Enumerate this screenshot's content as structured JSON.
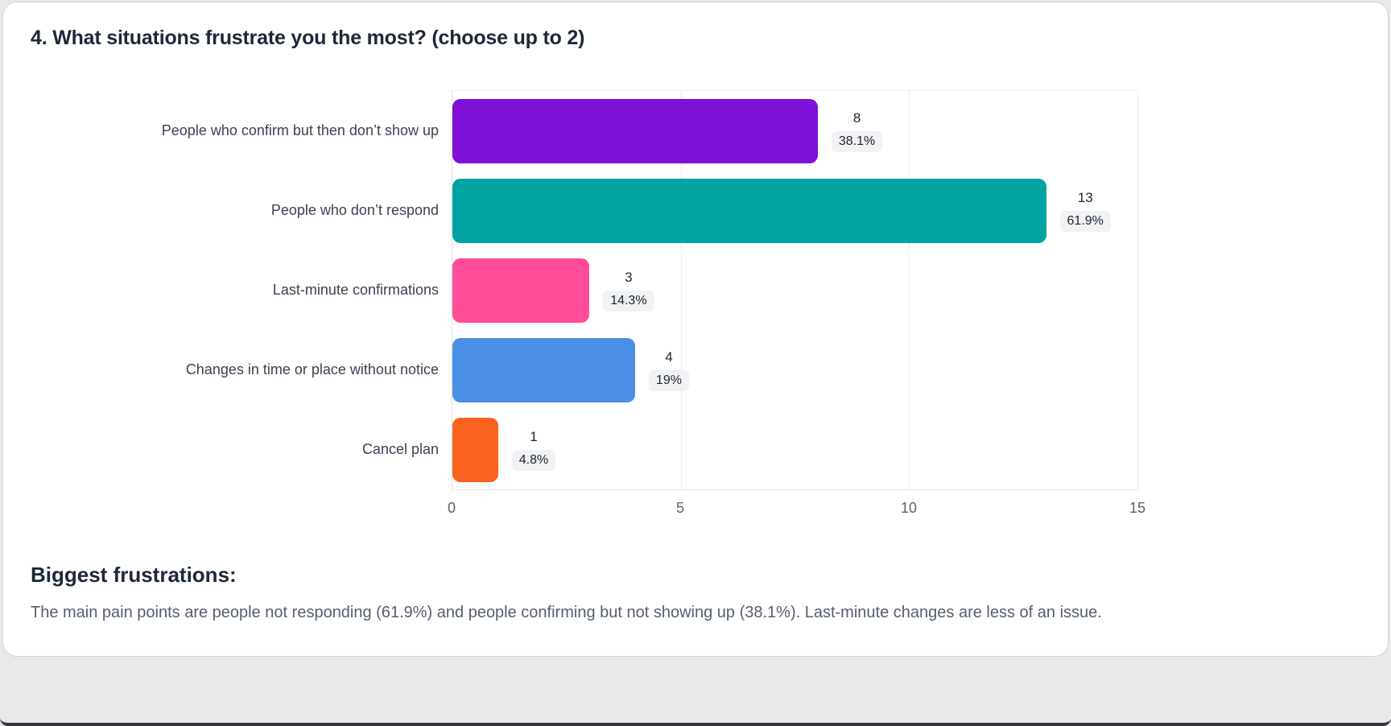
{
  "page": {
    "background_color": "#e9e9ec",
    "card_color": "#ffffff"
  },
  "chart_data": {
    "type": "bar",
    "orientation": "horizontal",
    "title": "4. What situations frustrate you the most? (choose up to 2)",
    "categories": [
      "People who confirm but then don’t show up",
      "People who don’t respond",
      "Last-minute confirmations",
      "Changes in time or place without notice",
      "Cancel plan"
    ],
    "values": [
      8,
      13,
      3,
      4,
      1
    ],
    "percent_labels": [
      "38.1%",
      "61.9%",
      "14.3%",
      "19%",
      "4.8%"
    ],
    "bar_colors": [
      "#7f11d6",
      "#00a3a1",
      "#ff4d9a",
      "#4a8fe4",
      "#f9621f"
    ],
    "xlim": [
      0,
      15
    ],
    "x_ticks": [
      0,
      5,
      10,
      15
    ],
    "grid": true,
    "legend": false
  },
  "summary": {
    "heading": "Biggest frustrations:",
    "text": "The main pain points are people not responding (61.9%) and people confirming but not showing up (38.1%). Last-minute changes are less of an issue."
  }
}
